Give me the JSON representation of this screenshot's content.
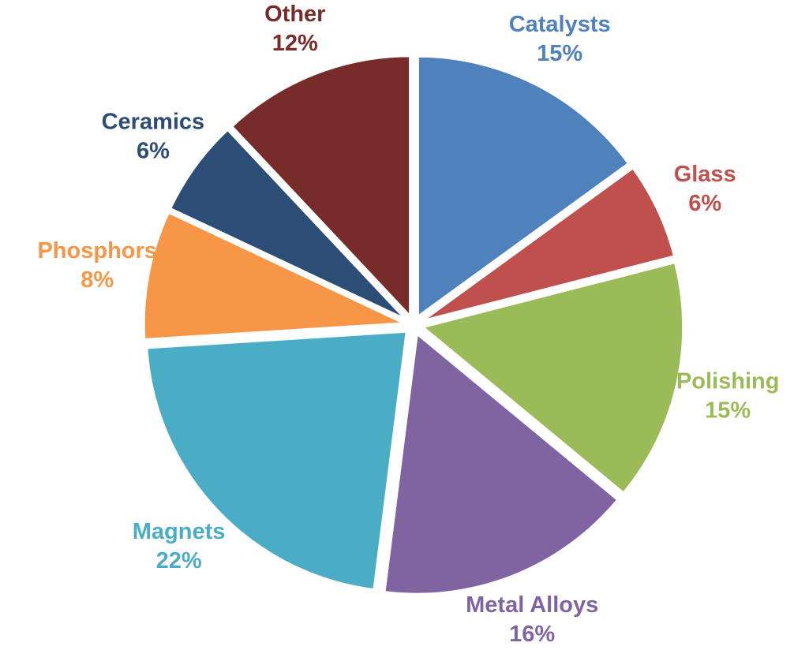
{
  "chart_data": {
    "type": "pie",
    "title": "",
    "slices": [
      {
        "label": "Catalysts",
        "value": 15,
        "display": "15%",
        "color": "#4F81BD"
      },
      {
        "label": "Glass",
        "value": 6,
        "display": "6%",
        "color": "#C0504D"
      },
      {
        "label": "Polishing",
        "value": 15,
        "display": "15%",
        "color": "#9BBB59"
      },
      {
        "label": "Metal Alloys",
        "value": 16,
        "display": "16%",
        "color": "#8064A2"
      },
      {
        "label": "Magnets",
        "value": 22,
        "display": "22%",
        "color": "#4BACC6"
      },
      {
        "label": "Phosphors",
        "value": 8,
        "display": "8%",
        "color": "#F79646"
      },
      {
        "label": "Ceramics",
        "value": 6,
        "display": "6%",
        "color": "#2C4D75"
      },
      {
        "label": "Other",
        "value": 12,
        "display": "12%",
        "color": "#772C2A"
      }
    ],
    "start_angle_deg": 0,
    "direction": "clockwise",
    "exploded": true,
    "legend": "none",
    "data_labels": "outside"
  }
}
